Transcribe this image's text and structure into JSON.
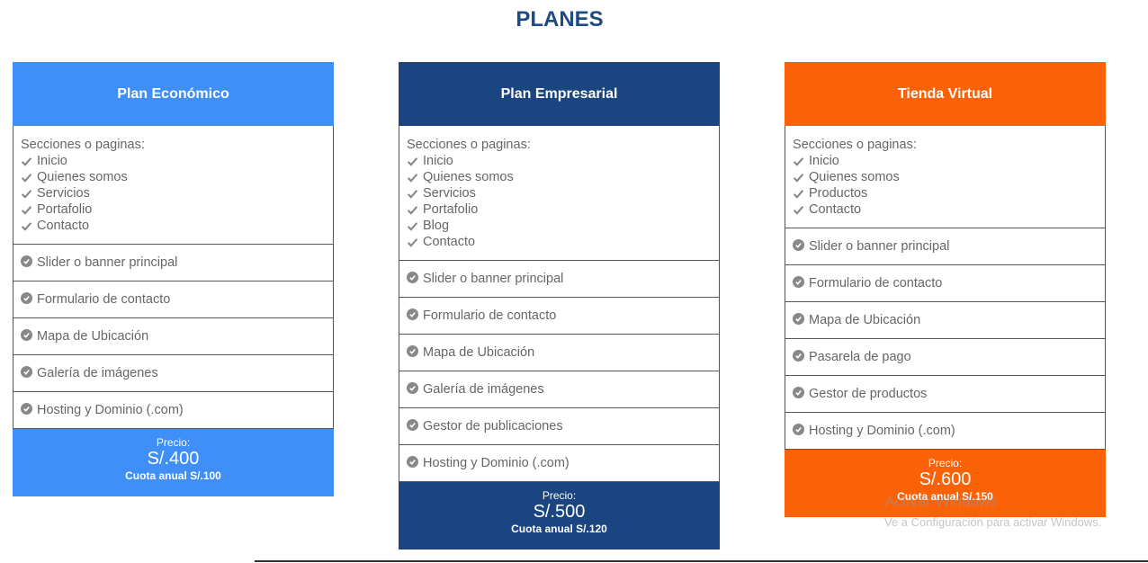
{
  "page_title": "PLANES",
  "colors": {
    "title": "#1e4b83",
    "plan1": "#3f8ff7",
    "plan2": "#1b4580",
    "plan3": "#fb6208",
    "text": "#666666",
    "icon": "#888888"
  },
  "icons": {
    "list_check": "check-icon",
    "feature_check": "circle-check-icon"
  },
  "plans": [
    {
      "name": "Plan Económico",
      "sections_label": "Secciones o paginas:",
      "sections": [
        "Inicio",
        "Quienes somos",
        "Servicios",
        "Portafolio",
        "Contacto"
      ],
      "features": [
        "Slider o banner principal",
        "Formulario de contacto",
        "Mapa de Ubicación",
        "Galería de imágenes",
        "Hosting y Dominio (.com)"
      ],
      "price_label": "Precio:",
      "price": "S/.400",
      "annual": "Cuota anual S/.100"
    },
    {
      "name": "Plan Empresarial",
      "sections_label": "Secciones o paginas:",
      "sections": [
        "Inicio",
        "Quienes somos",
        "Servicios",
        "Portafolio",
        "Blog",
        "Contacto"
      ],
      "features": [
        "Slider o banner principal",
        "Formulario de contacto",
        "Mapa de Ubicación",
        "Galería de imágenes",
        "Gestor de publicaciones",
        "Hosting y Dominio (.com)"
      ],
      "price_label": "Precio:",
      "price": "S/.500",
      "annual": "Cuota anual S/.120"
    },
    {
      "name": "Tienda Virtual",
      "sections_label": "Secciones o paginas:",
      "sections": [
        "Inicio",
        "Quienes somos",
        "Productos",
        "Contacto"
      ],
      "features": [
        "Slider o banner principal",
        "Formulario de contacto",
        "Mapa de Ubicación",
        "Pasarela de pago",
        "Gestor de productos",
        "Hosting y Dominio (.com)"
      ],
      "price_label": "Precio:",
      "price": "S/.600",
      "annual": "Cuota anual S/.150"
    }
  ],
  "watermark": {
    "line1": "Activar Windows",
    "line2": "Ve a Configuración para activar Windows."
  }
}
